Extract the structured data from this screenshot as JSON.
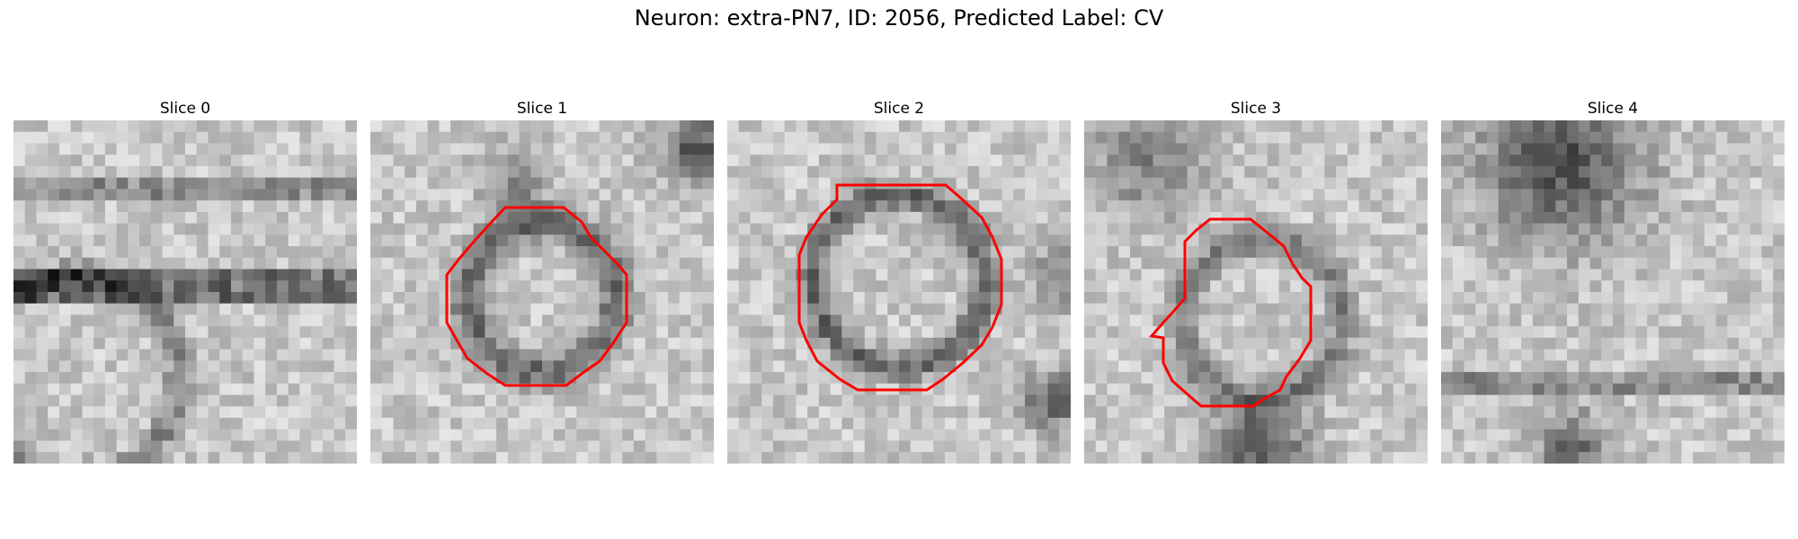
{
  "figure": {
    "suptitle": "Neuron: extra-PN7, ID: 2056, Predicted Label: CV"
  },
  "panels": [
    {
      "title": "Slice 0",
      "has_contour": false
    },
    {
      "title": "Slice 1",
      "has_contour": true
    },
    {
      "title": "Slice 2",
      "has_contour": true
    },
    {
      "title": "Slice 3",
      "has_contour": true
    },
    {
      "title": "Slice 4",
      "has_contour": false
    }
  ],
  "colors": {
    "contour": "#ff0000",
    "background": "#ffffff"
  },
  "image_style": "grayscale pixelated microscopy patch"
}
